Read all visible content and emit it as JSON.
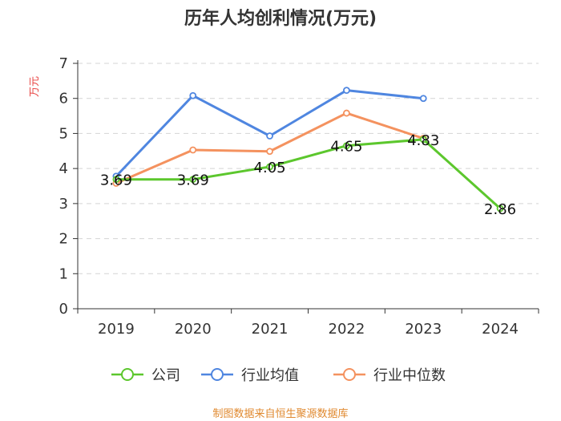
{
  "chart_data": {
    "type": "line",
    "title": "历年人均创利情况(万元)",
    "ylabel": "万元",
    "xlabel": "",
    "ylim": [
      0,
      7
    ],
    "yticks": [
      0,
      1,
      2,
      3,
      4,
      5,
      6,
      7
    ],
    "categories": [
      "2019",
      "2020",
      "2021",
      "2022",
      "2023",
      "2024"
    ],
    "series": [
      {
        "name": "公司",
        "color": "#5cc72d",
        "values": [
          3.69,
          3.69,
          4.05,
          4.65,
          4.83,
          2.86
        ],
        "labels": [
          "3.69",
          "3.69",
          "4.05",
          "4.65",
          "4.83",
          "2.86"
        ]
      },
      {
        "name": "行业均值",
        "color": "#4f86e0",
        "values": [
          3.78,
          6.08,
          4.93,
          6.23,
          6.0,
          null
        ]
      },
      {
        "name": "行业中位数",
        "color": "#f4925f",
        "values": [
          3.58,
          4.53,
          4.49,
          5.58,
          4.86,
          null
        ]
      }
    ],
    "grid": true,
    "legend": "bottom"
  },
  "footer": {
    "source": "制图数据来自恒生聚源数据库"
  }
}
